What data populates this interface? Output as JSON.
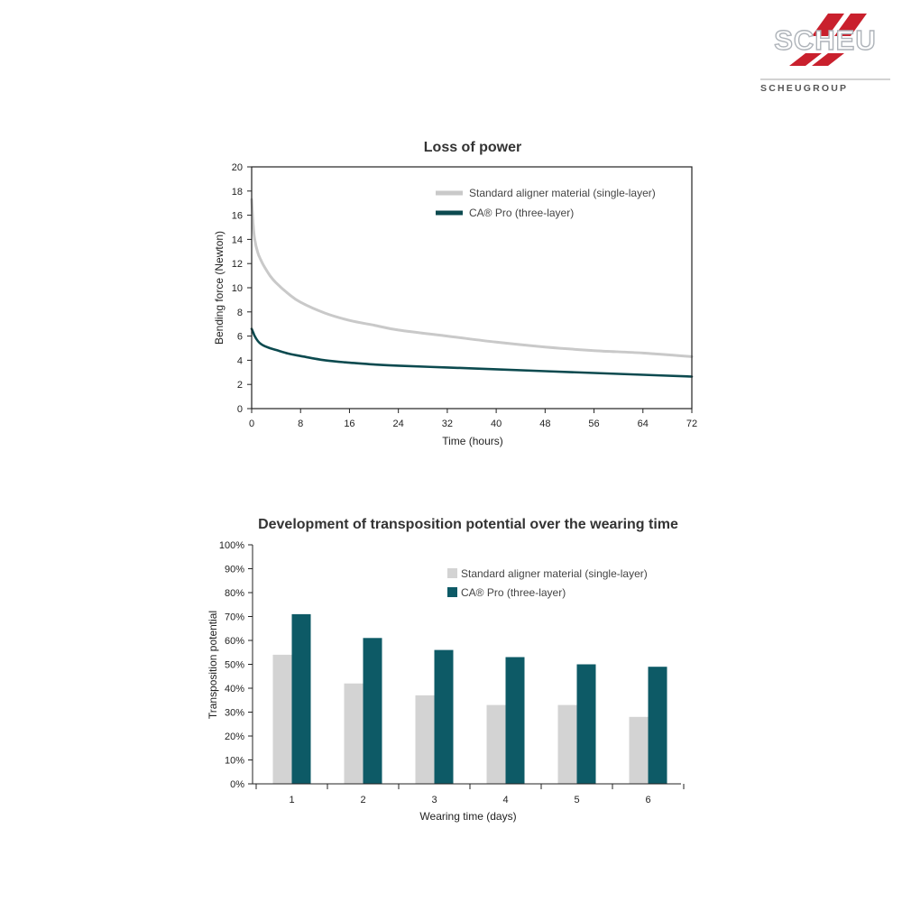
{
  "logo": {
    "brand": "SCHEU",
    "group_text": "SCHEUGROUP",
    "colors": {
      "text": "#bfc4ca",
      "stripes": "#c9202d",
      "group": "#555555"
    }
  },
  "colors": {
    "standard_line": "#c9c9c9",
    "ca_pro_line": "#0c4a4f",
    "standard_bar": "#d3d3d3",
    "ca_pro_bar": "#0d5a66"
  },
  "chart_data": [
    {
      "type": "line",
      "title": "Loss of power",
      "xlabel": "Time (hours)",
      "ylabel": "Bending force (Newton)",
      "xlim": [
        0,
        72
      ],
      "ylim": [
        0,
        20
      ],
      "xticks": [
        0,
        8,
        16,
        24,
        32,
        40,
        48,
        56,
        64,
        72
      ],
      "yticks": [
        0,
        2,
        4,
        6,
        8,
        10,
        12,
        14,
        16,
        18,
        20
      ],
      "legend_position": "top-right",
      "series": [
        {
          "name": "Standard aligner material (single-layer)",
          "x": [
            0,
            0.25,
            0.5,
            1,
            1.5,
            2,
            3,
            4,
            6,
            8,
            12,
            16,
            20,
            24,
            32,
            40,
            48,
            56,
            64,
            72
          ],
          "y": [
            17.3,
            15.2,
            14.0,
            12.9,
            12.3,
            11.8,
            11.0,
            10.4,
            9.5,
            8.8,
            7.9,
            7.3,
            6.9,
            6.5,
            6.0,
            5.5,
            5.1,
            4.8,
            4.6,
            4.3
          ]
        },
        {
          "name": "CA® Pro (three-layer)",
          "x": [
            0,
            0.25,
            0.5,
            1,
            1.5,
            2,
            3,
            4,
            6,
            8,
            12,
            16,
            20,
            24,
            32,
            40,
            48,
            56,
            64,
            72
          ],
          "y": [
            6.6,
            6.3,
            6.0,
            5.6,
            5.35,
            5.2,
            5.0,
            4.85,
            4.55,
            4.35,
            4.0,
            3.8,
            3.65,
            3.55,
            3.4,
            3.25,
            3.1,
            2.95,
            2.8,
            2.65
          ]
        }
      ]
    },
    {
      "type": "bar",
      "title": "Development of transposition potential over the wearing time",
      "xlabel": "Wearing time (days)",
      "ylabel": "Transposition potential",
      "categories": [
        "1",
        "2",
        "3",
        "4",
        "5",
        "6"
      ],
      "ylim": [
        0,
        100
      ],
      "yticks": [
        "0%",
        "10%",
        "20%",
        "30%",
        "40%",
        "50%",
        "60%",
        "70%",
        "80%",
        "90%",
        "100%"
      ],
      "legend_position": "top-right",
      "series": [
        {
          "name": "Standard aligner material (single-layer)",
          "values": [
            54,
            42,
            37,
            33,
            33,
            28
          ]
        },
        {
          "name": "CA® Pro (three-layer)",
          "values": [
            71,
            61,
            56,
            53,
            50,
            49
          ]
        }
      ]
    }
  ]
}
